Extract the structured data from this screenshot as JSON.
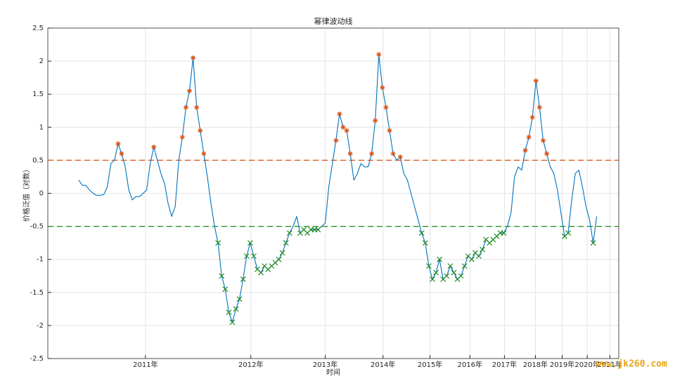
{
  "chart_data": {
    "type": "line",
    "title": "幂律波动线",
    "x_label": "时间",
    "y_label": "价格泛值（对数）",
    "watermark": "www.jk260.com",
    "xlim": [
      2.698,
      3.657
    ],
    "ylim": [
      -2.5,
      2.5
    ],
    "xticks": [
      {
        "value": 2.862,
        "label": "2011年"
      },
      {
        "value": 3.039,
        "label": "2012年"
      },
      {
        "value": 3.164,
        "label": "2013年"
      },
      {
        "value": 3.261,
        "label": "2014年"
      },
      {
        "value": 3.34,
        "label": "2015年"
      },
      {
        "value": 3.407,
        "label": "2016年"
      },
      {
        "value": 3.465,
        "label": "2017年"
      },
      {
        "value": 3.517,
        "label": "2018年"
      },
      {
        "value": 3.562,
        "label": "2019年"
      },
      {
        "value": 3.604,
        "label": "2020年"
      },
      {
        "value": 3.642,
        "label": "2021年"
      }
    ],
    "yticks": [
      -2.5,
      -2,
      -1.5,
      -1,
      -0.5,
      0,
      0.5,
      1,
      1.5,
      2,
      2.5
    ],
    "grid": true,
    "reference_lines": [
      {
        "value": 0.5,
        "side": "above",
        "marker": "star",
        "color": "#d95319"
      },
      {
        "value": -0.5,
        "side": "below",
        "marker": "cross",
        "color": "#1e8a1e"
      }
    ],
    "series": [
      {
        "color": "#0072bd",
        "x": [
          2.75,
          2.756,
          2.762,
          2.768,
          2.774,
          2.78,
          2.786,
          2.792,
          2.798,
          2.804,
          2.81,
          2.816,
          2.822,
          2.828,
          2.834,
          2.84,
          2.846,
          2.852,
          2.858,
          2.864,
          2.87,
          2.876,
          2.882,
          2.888,
          2.894,
          2.9,
          2.906,
          2.912,
          2.918,
          2.924,
          2.93,
          2.936,
          2.942,
          2.948,
          2.954,
          2.96,
          2.966,
          2.972,
          2.978,
          2.984,
          2.99,
          2.996,
          3.002,
          3.008,
          3.014,
          3.02,
          3.026,
          3.032,
          3.038,
          3.044,
          3.05,
          3.056,
          3.062,
          3.068,
          3.074,
          3.08,
          3.086,
          3.092,
          3.098,
          3.104,
          3.11,
          3.116,
          3.122,
          3.128,
          3.134,
          3.14,
          3.146,
          3.152,
          3.158,
          3.164,
          3.17,
          3.176,
          3.182,
          3.188,
          3.194,
          3.2,
          3.206,
          3.212,
          3.218,
          3.224,
          3.23,
          3.236,
          3.242,
          3.248,
          3.254,
          3.26,
          3.266,
          3.272,
          3.278,
          3.284,
          3.29,
          3.296,
          3.302,
          3.308,
          3.314,
          3.32,
          3.326,
          3.332,
          3.338,
          3.344,
          3.35,
          3.356,
          3.362,
          3.368,
          3.374,
          3.38,
          3.386,
          3.392,
          3.398,
          3.404,
          3.41,
          3.416,
          3.422,
          3.428,
          3.434,
          3.44,
          3.446,
          3.452,
          3.458,
          3.464,
          3.47,
          3.476,
          3.482,
          3.488,
          3.494,
          3.5,
          3.506,
          3.512,
          3.518,
          3.524,
          3.53,
          3.536,
          3.542,
          3.548,
          3.554,
          3.56,
          3.566,
          3.572,
          3.578,
          3.584,
          3.59,
          3.596,
          3.602,
          3.608,
          3.614,
          3.62
        ],
        "values": [
          0.2,
          0.12,
          0.12,
          0.05,
          0.0,
          -0.03,
          -0.03,
          -0.02,
          0.1,
          0.45,
          0.5,
          0.75,
          0.6,
          0.4,
          0.05,
          -0.1,
          -0.05,
          -0.05,
          0.0,
          0.05,
          0.45,
          0.7,
          0.5,
          0.3,
          0.15,
          -0.15,
          -0.35,
          -0.2,
          0.5,
          0.85,
          1.3,
          1.55,
          2.05,
          1.3,
          0.95,
          0.6,
          0.25,
          -0.15,
          -0.5,
          -0.75,
          -1.25,
          -1.45,
          -1.8,
          -1.95,
          -1.75,
          -1.6,
          -1.3,
          -0.95,
          -0.75,
          -0.95,
          -1.15,
          -1.2,
          -1.1,
          -1.15,
          -1.1,
          -1.05,
          -1.0,
          -0.9,
          -0.75,
          -0.6,
          -0.5,
          -0.35,
          -0.6,
          -0.55,
          -0.6,
          -0.55,
          -0.55,
          -0.55,
          -0.5,
          -0.45,
          0.1,
          0.45,
          0.8,
          1.2,
          1.0,
          0.95,
          0.6,
          0.2,
          0.3,
          0.45,
          0.4,
          0.4,
          0.6,
          1.1,
          2.1,
          1.6,
          1.3,
          0.95,
          0.6,
          0.5,
          0.55,
          0.3,
          0.2,
          0.0,
          -0.2,
          -0.4,
          -0.6,
          -0.75,
          -1.1,
          -1.3,
          -1.2,
          -1.0,
          -1.3,
          -1.25,
          -1.1,
          -1.2,
          -1.3,
          -1.25,
          -1.1,
          -0.95,
          -1.0,
          -0.9,
          -0.95,
          -0.85,
          -0.7,
          -0.75,
          -0.7,
          -0.65,
          -0.6,
          -0.6,
          -0.5,
          -0.3,
          0.25,
          0.4,
          0.35,
          0.65,
          0.85,
          1.15,
          1.7,
          1.3,
          0.8,
          0.6,
          0.4,
          0.3,
          0.05,
          -0.3,
          -0.65,
          -0.6,
          -0.1,
          0.3,
          0.35,
          0.1,
          -0.2,
          -0.4,
          -0.75,
          -0.35
        ]
      }
    ]
  }
}
